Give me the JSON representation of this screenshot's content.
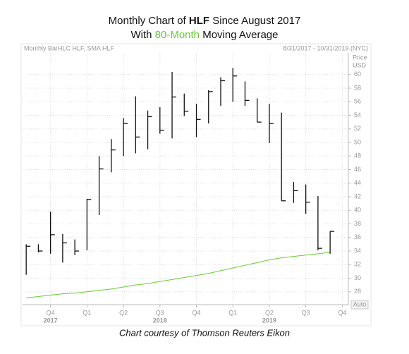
{
  "chart_data": {
    "type": "ohlc",
    "title_parts": [
      "Monthly Chart of ",
      "HLF",
      " Since August 2017"
    ],
    "subtitle_parts": [
      "With ",
      "80-Month",
      " Moving Average"
    ],
    "subtitle_highlight_color": "#66cc33",
    "header_left": "Monthly BarHLC HLF, SMA HLF",
    "header_right": "8/31/2017 - 10/31/2019 (NYC)",
    "y_axis_label": "Price",
    "y_axis_unit": "USD",
    "auto_button": "Auto",
    "caption": "Chart courtesy of Thomson Reuters Eikon",
    "categories": [
      null,
      null,
      null,
      null,
      null,
      null,
      null,
      null,
      null,
      null,
      null,
      null,
      null,
      null,
      null,
      null,
      null,
      null,
      null,
      null,
      null,
      null,
      null,
      null,
      null,
      null
    ],
    "high": [
      35.0,
      35.0,
      39.8,
      36.5,
      35.7,
      41.7,
      48.0,
      50.5,
      53.6,
      56.8,
      54.7,
      55.2,
      60.4,
      57.2,
      55.7,
      57.7,
      59.6,
      61.0,
      59.0,
      56.5,
      55.7,
      54.4,
      44.2,
      43.8,
      42.1,
      36.9
    ],
    "low": [
      30.5,
      33.8,
      33.6,
      32.3,
      33.4,
      34.1,
      39.3,
      45.6,
      48.0,
      48.4,
      49.0,
      51.3,
      50.6,
      53.9,
      50.8,
      52.8,
      55.4,
      56.0,
      55.4,
      53.0,
      49.9,
      41.4,
      41.1,
      39.5,
      34.1,
      33.6
    ],
    "close": [
      34.7,
      34.0,
      36.4,
      35.2,
      34.0,
      41.6,
      46.1,
      48.9,
      52.8,
      50.8,
      53.8,
      51.8,
      56.7,
      54.6,
      53.4,
      57.5,
      59.1,
      59.8,
      56.2,
      53.0,
      52.8,
      41.4,
      42.9,
      41.2,
      34.4,
      36.9
    ],
    "bar_color": "#111111",
    "moving_average": {
      "color": "#66cc33",
      "values": [
        27.1,
        27.3,
        27.5,
        27.7,
        27.8,
        28.0,
        28.2,
        28.4,
        28.7,
        29.0,
        29.2,
        29.5,
        29.8,
        30.1,
        30.4,
        30.7,
        31.1,
        31.5,
        31.9,
        32.3,
        32.7,
        33.0,
        33.2,
        33.4,
        33.6,
        33.8
      ]
    },
    "xlim": [
      -0.3,
      26.5
    ],
    "xticks": [
      {
        "value": 2,
        "label": "Q4"
      },
      {
        "value": 5,
        "label": "Q1"
      },
      {
        "value": 8,
        "label": "Q2"
      },
      {
        "value": 11,
        "label": "Q3"
      },
      {
        "value": 14,
        "label": "Q4"
      },
      {
        "value": 17,
        "label": "Q1"
      },
      {
        "value": 20,
        "label": "Q2"
      },
      {
        "value": 23,
        "label": "Q3"
      },
      {
        "value": 26,
        "label": "Q4"
      }
    ],
    "year_labels": [
      {
        "value": 2,
        "label": "2017"
      },
      {
        "value": 11,
        "label": "2018"
      },
      {
        "value": 20,
        "label": "2019"
      }
    ],
    "ylim": [
      26.1,
      63.2
    ],
    "yticks": [
      28,
      30,
      32,
      34,
      36,
      38,
      40,
      42,
      44,
      46,
      48,
      50,
      52,
      54,
      56,
      58,
      60
    ],
    "grid": true
  }
}
